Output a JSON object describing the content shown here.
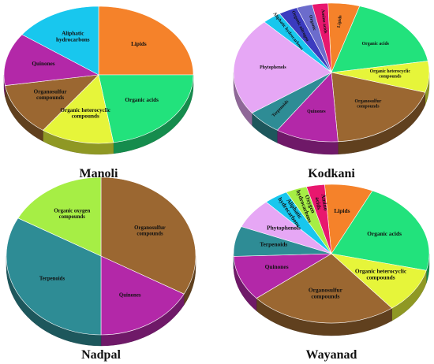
{
  "figure": {
    "colors": {
      "Lipids": "#F5822A",
      "Organic acids": "#22E27C",
      "Organic heterocyclic compounds": "#E6F53A",
      "Organosulfur compounds": "#9B6731",
      "Quinones": "#B328A8",
      "Aliphatic hydrocarbons": "#18C7EE",
      "Terpenoids": "#2E8C95",
      "Phytophenols": "#E6A7F5",
      "Organic oxygen compounds": "#A6EE45",
      "Organic nitrogen compounds": "#3B3BBF",
      "Organic compounds": "#6C6CCC",
      "Amino acids": "#E8176E"
    }
  },
  "chart_data": [
    {
      "type": "pie",
      "title": "Manoli",
      "slices": [
        {
          "label": "Lipids",
          "value": 25.0
        },
        {
          "label": "Organic acids",
          "value": 22.5
        },
        {
          "label": "Organic heterocyclic\ncompounds",
          "key": "Organic heterocyclic compounds",
          "value": 12.5
        },
        {
          "label": "Organosulfur\ncompounds",
          "key": "Organosulfur compounds",
          "value": 12.5
        },
        {
          "label": "Quinones",
          "value": 12.5
        },
        {
          "label": "Aliphatic\nhydrocarbons",
          "key": "Aliphatic hydrocarbons",
          "value": 15.0
        }
      ]
    },
    {
      "type": "pie",
      "title": "Kodkani",
      "slices": [
        {
          "label": "Lipids",
          "value": 5.0
        },
        {
          "label": "Organic acids",
          "value": 17.0
        },
        {
          "label": "Organic heterocyclic\ncompounds",
          "key": "Organic heterocyclic compounds",
          "value": 7.0
        },
        {
          "label": "Organosulfur\ncompounds",
          "key": "Organosulfur compounds",
          "value": 18.5
        },
        {
          "label": "Quinones",
          "value": 10.0
        },
        {
          "label": "Terpenoids",
          "value": 5.5
        },
        {
          "label": "Phytophenols",
          "value": 22.0
        },
        {
          "label": "Aliphatic hydrocarbons",
          "key": "Aliphatic hydrocarbons",
          "value": 3.0
        },
        {
          "label": "Organic nitrogen",
          "key": "Organic nitrogen compounds",
          "value": 3.0
        },
        {
          "label": "Organic",
          "key": "Organic compounds",
          "value": 2.5
        },
        {
          "label": "Amino acids",
          "value": 2.5
        }
      ]
    },
    {
      "type": "pie",
      "title": "Nadpal",
      "slices": [
        {
          "label": "Organosulfur\ncompounds",
          "key": "Organosulfur compounds",
          "value": 33.0
        },
        {
          "label": "Quinones",
          "value": 17.0
        },
        {
          "label": "Terpenoids",
          "value": 33.0
        },
        {
          "label": "Organic oxygen\ncompounds",
          "key": "Organic oxygen compounds",
          "value": 17.0
        }
      ]
    },
    {
      "type": "pie",
      "title": "Wayanad",
      "slices": [
        {
          "label": "Lipids",
          "value": 8.0
        },
        {
          "label": "Organic acids",
          "value": 22.0
        },
        {
          "label": "Organic heterocyclic\ncompounds",
          "key": "Organic heterocyclic compounds",
          "value": 10.5
        },
        {
          "label": "Organosulfur\ncompounds",
          "key": "Organosulfur compounds",
          "value": 24.5
        },
        {
          "label": "Quinones",
          "value": 10.5
        },
        {
          "label": "Terpenoids",
          "value": 7.0
        },
        {
          "label": "Phytophenols",
          "value": 7.0
        },
        {
          "label": "Aliphatic\nhydrocarbons",
          "key": "Aliphatic hydrocarbons",
          "value": 4.0
        },
        {
          "label": "Oxygen\nhydrocarbons",
          "key": "Organic oxygen compounds",
          "value": 3.5
        },
        {
          "label": "Amino\nacids",
          "key": "Amino acids",
          "value": 3.0
        }
      ]
    }
  ]
}
